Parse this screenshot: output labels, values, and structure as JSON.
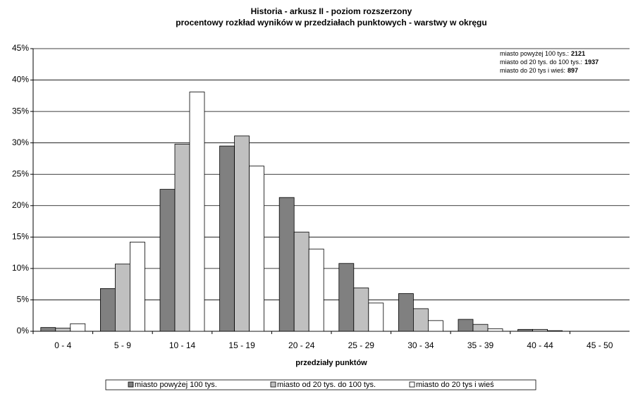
{
  "chart_data": {
    "type": "bar",
    "title": "Historia - arkusz II - poziom rozszerzony",
    "subtitle": "procentowy rozkład wyników w przedziałach punktowych - warstwy w okręgu",
    "x_label": "przedziały punktów",
    "categories": [
      "0 - 4",
      "5 - 9",
      "10 - 14",
      "15 - 19",
      "20 - 24",
      "25 - 29",
      "30 - 34",
      "35 - 39",
      "40 - 44",
      "45 - 50"
    ],
    "series": [
      {
        "name": "miasto powyżej 100 tys.",
        "color": "#808080",
        "values": [
          0.6,
          6.8,
          22.6,
          29.5,
          21.3,
          10.8,
          6.0,
          1.9,
          0.3,
          0
        ]
      },
      {
        "name": "miasto od 20 tys. do 100 tys.",
        "color": "#c0c0c0",
        "values": [
          0.5,
          10.7,
          29.8,
          31.1,
          15.8,
          6.9,
          3.6,
          1.1,
          0.3,
          0
        ]
      },
      {
        "name": "miasto do 20 tys i wieś",
        "color": "#ffffff",
        "values": [
          1.2,
          14.2,
          38.1,
          26.3,
          13.1,
          4.5,
          1.7,
          0.4,
          0.1,
          0
        ]
      }
    ],
    "annotations": [
      {
        "text": "miasto powyżej 100 tys.:",
        "count": 2121
      },
      {
        "text": "miasto od 20 tys. do 100 tys.:",
        "count": 1937
      },
      {
        "text": "miasto do 20 tys i wieś:",
        "count": 897
      }
    ],
    "ylim": [
      0,
      45
    ],
    "yticks": [
      {
        "value": 0,
        "label": "0%"
      },
      {
        "value": 5,
        "label": "5%"
      },
      {
        "value": 10,
        "label": "10%"
      },
      {
        "value": 15,
        "label": "15%"
      },
      {
        "value": 20,
        "label": "20%"
      },
      {
        "value": 25,
        "label": "25%"
      },
      {
        "value": 30,
        "label": "30%"
      },
      {
        "value": 35,
        "label": "35%"
      },
      {
        "value": 40,
        "label": "40%"
      },
      {
        "value": 45,
        "label": "45%"
      }
    ],
    "grid": true,
    "legend": "bottom"
  }
}
